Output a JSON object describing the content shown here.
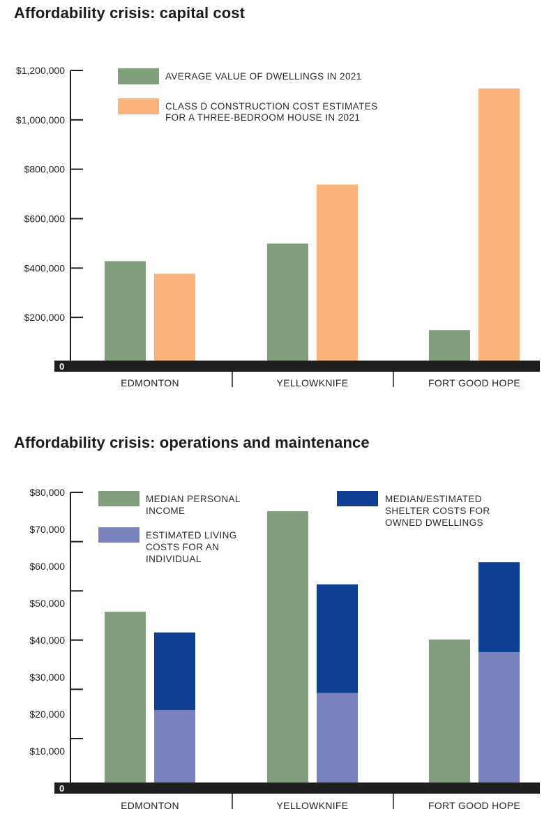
{
  "colors": {
    "green": "#829f7d",
    "orange": "#fbb37c",
    "lavender": "#7a83bd",
    "navy": "#0f3f92",
    "axis": "#1e1e1e"
  },
  "chart_data": [
    {
      "type": "bar",
      "title": "Affordability crisis: capital cost",
      "xlabel": "",
      "ylabel": "",
      "categories": [
        "EDMONTON",
        "YELLOWKNIFE",
        "FORT GOOD HOPE"
      ],
      "series": [
        {
          "name": "AVERAGE VALUE OF DWELLINGS IN 2021",
          "color_key": "green",
          "values": [
            428000,
            499000,
            149000
          ]
        },
        {
          "name": "CLASS D CONSTRUCTION COST ESTIMATES FOR A THREE-BEDROOM HOUSE IN 2021",
          "color_key": "orange",
          "values": [
            377000,
            738000,
            1127000
          ]
        }
      ],
      "ylim": [
        0,
        1200000
      ],
      "yticks": [
        200000,
        400000,
        600000,
        800000,
        1000000,
        1200000
      ],
      "ytick_labels": [
        "$200,000",
        "$400,000",
        "$600,000",
        "$800,000",
        "$1,000,000",
        "$1,200,000"
      ],
      "zero_label": "0",
      "legend": {
        "placement": "top-center",
        "entries": [
          {
            "color_key": "green",
            "lines": [
              "AVERAGE VALUE OF DWELLINGS IN 2021"
            ]
          },
          {
            "color_key": "orange",
            "lines": [
              "CLASS D CONSTRUCTION COST ESTIMATES",
              "FOR A THREE-BEDROOM HOUSE IN 2021"
            ]
          }
        ]
      },
      "grid": false
    },
    {
      "type": "bar",
      "subtype": "grouped-with-stacked",
      "title": "Affordability crisis: operations and maintenance",
      "xlabel": "",
      "ylabel": "",
      "categories": [
        "EDMONTON",
        "YELLOWKNIFE",
        "FORT GOOD HOPE"
      ],
      "series": [
        {
          "name": "MEDIAN PERSONAL INCOME",
          "color_key": "green",
          "stack": "income",
          "values": [
            47700,
            74900,
            40200
          ]
        },
        {
          "name": "ESTIMATED LIVING COSTS FOR AN INDIVIDUAL",
          "color_key": "lavender",
          "stack": "costs",
          "values": [
            21100,
            25700,
            36800
          ]
        },
        {
          "name": "MEDIAN/ESTIMATED SHELTER COSTS FOR OWNED DWELLINGS",
          "color_key": "navy",
          "stack": "costs",
          "values": [
            21000,
            29400,
            24300
          ]
        }
      ],
      "ylim": [
        0,
        80000
      ],
      "yticks": [
        10000,
        20000,
        30000,
        40000,
        50000,
        60000,
        70000,
        80000
      ],
      "ytick_labels": [
        "$10,000",
        "$20,000",
        "$30,000",
        "$40,000",
        "$50,000",
        "$60,000",
        "$70,000",
        "$80,000"
      ],
      "zero_label": "0",
      "legend": {
        "placement": "top",
        "entries": [
          {
            "color_key": "green",
            "lines": [
              "MEDIAN PERSONAL",
              "INCOME"
            ]
          },
          {
            "color_key": "lavender",
            "lines": [
              "ESTIMATED LIVING",
              "COSTS FOR AN",
              "INDIVIDUAL"
            ]
          },
          {
            "color_key": "navy",
            "lines": [
              "MEDIAN/ESTIMATED",
              "SHELTER COSTS FOR",
              "OWNED DWELLINGS"
            ]
          }
        ]
      },
      "grid": false
    }
  ]
}
